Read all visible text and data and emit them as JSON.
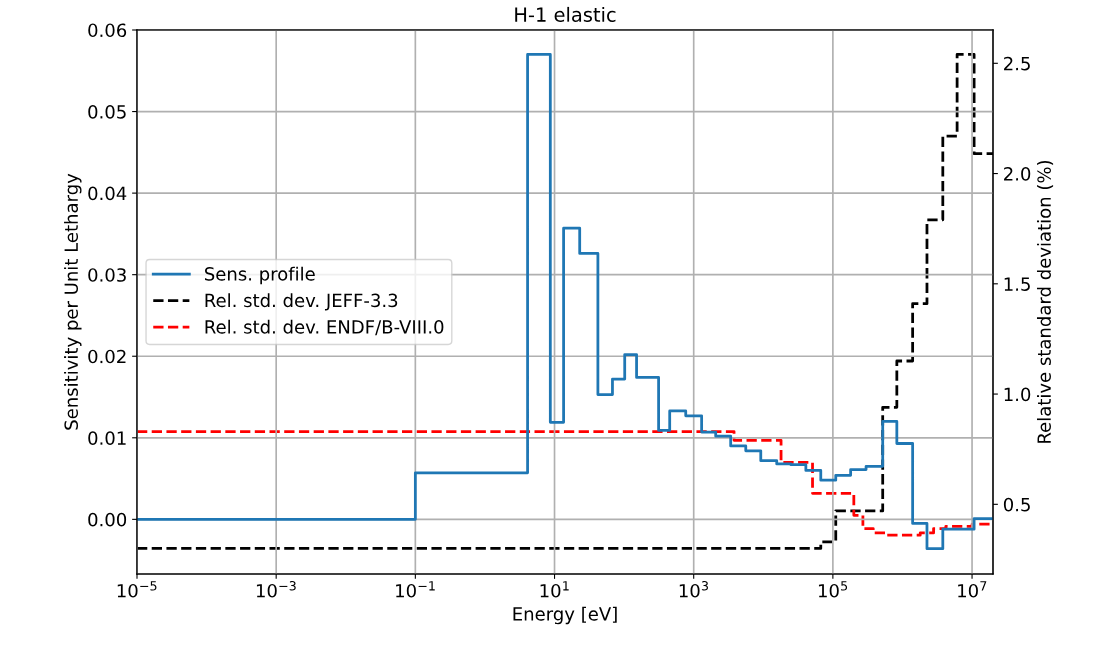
{
  "chart_data": {
    "type": "step",
    "title": "H-1 elastic",
    "xlabel": "Energy [eV]",
    "ylabel": "Sensitivity per Unit Lethargy",
    "y2label": "Relative standard deviation (%)",
    "log": "x",
    "grid": true,
    "legend": "center left",
    "xlim": [
      1e-05,
      20000000.0
    ],
    "xticks": [
      {
        "value": 1e-05,
        "label": "10$^{−5}$"
      },
      {
        "value": 0.001,
        "label": "10$^{−3}$"
      },
      {
        "value": 0.1,
        "label": "10$^{−1}$"
      },
      {
        "value": 10,
        "label": "10$^{1}$"
      },
      {
        "value": 1000,
        "label": "10$^{3}$"
      },
      {
        "value": 100000,
        "label": "10$^{5}$"
      },
      {
        "value": 10000000,
        "label": "10$^{7}$"
      }
    ],
    "ylim": [
      -0.0067,
      0.06
    ],
    "yticks": [
      {
        "value": 0,
        "label": "0.00"
      },
      {
        "value": 0.01,
        "label": "0.01"
      },
      {
        "value": 0.02,
        "label": "0.02"
      },
      {
        "value": 0.03,
        "label": "0.03"
      },
      {
        "value": 0.04,
        "label": "0.04"
      },
      {
        "value": 0.05,
        "label": "0.05"
      },
      {
        "value": 0.06,
        "label": "0.06"
      }
    ],
    "y2lim": [
      0.184,
      2.651
    ],
    "y2ticks": [
      {
        "value": 0.5,
        "label": "0.5"
      },
      {
        "value": 1.0,
        "label": "1.0"
      },
      {
        "value": 1.5,
        "label": "1.5"
      },
      {
        "value": 2.0,
        "label": "2.0"
      },
      {
        "value": 2.5,
        "label": "2.5"
      }
    ],
    "series": [
      {
        "name": "Sens. profile",
        "color": "#1f77b4",
        "line_style": "solid",
        "x": [
          1e-05,
          0.1,
          4.1,
          8.7,
          13.5,
          23,
          42,
          68,
          102,
          151,
          313,
          452,
          768,
          1300,
          2070,
          3400,
          5600,
          9200,
          15600,
          24900,
          40900,
          67000,
          110000,
          180000,
          300000,
          520000,
          830000,
          1400000,
          2250000,
          3800000,
          10700000,
          20000000
        ],
        "values": [
          0.0,
          0.0057,
          0.057,
          0.0119,
          0.0357,
          0.0326,
          0.0153,
          0.0172,
          0.0202,
          0.0174,
          0.0109,
          0.0133,
          0.0127,
          0.0107,
          0.0102,
          0.009,
          0.0084,
          0.0072,
          0.0068,
          0.0067,
          0.006,
          0.0048,
          0.0054,
          0.0061,
          0.0065,
          0.012,
          0.0093,
          -0.0005,
          -0.0036,
          -0.0012,
          0.0001,
          0.0001
        ]
      },
      {
        "name": "Rel. std. dev. JEFF-3.3",
        "color": "#000000",
        "line_style": "dashed",
        "axis": "y2",
        "x": [
          1e-05,
          67000,
          110000,
          520000,
          830000,
          1400000,
          2250000,
          3800000,
          6100000,
          10700000,
          20000000
        ],
        "values": [
          0.3,
          0.33,
          0.47,
          0.94,
          1.15,
          1.41,
          1.79,
          2.17,
          2.54,
          2.09,
          2.09
        ]
      },
      {
        "name": "Rel. std. dev. ENDF/B-VIII.0",
        "color": "#ff0000",
        "line_style": "dashed",
        "axis": "y2",
        "x": [
          1e-05,
          3800,
          18000,
          51000,
          200000,
          270000,
          380000,
          590000,
          1800000,
          2800000,
          4200000,
          10000000,
          20000000
        ],
        "values": [
          0.83,
          0.79,
          0.69,
          0.55,
          0.45,
          0.39,
          0.37,
          0.36,
          0.37,
          0.39,
          0.4,
          0.41,
          0.41
        ]
      }
    ]
  }
}
